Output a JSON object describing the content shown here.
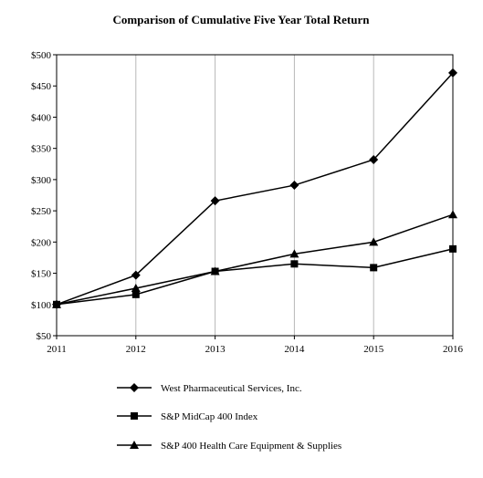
{
  "chart_data": {
    "type": "line",
    "title": "Comparison of Cumulative Five Year Total Return",
    "xlabel": "",
    "ylabel": "",
    "x": [
      "2011",
      "2012",
      "2013",
      "2014",
      "2015",
      "2016"
    ],
    "ylim": [
      50,
      500
    ],
    "y_ticks": [
      "$50",
      "$100",
      "$150",
      "$200",
      "$250",
      "$300",
      "$350",
      "$400",
      "$450",
      "$500"
    ],
    "grid": "vertical",
    "legend_position": "bottom",
    "series": [
      {
        "name": "West Pharmaceutical Services, Inc.",
        "marker": "diamond",
        "values": [
          100,
          147,
          266,
          291,
          332,
          471
        ]
      },
      {
        "name": "S&P MidCap 400 Index",
        "marker": "square",
        "values": [
          100,
          116,
          153,
          165,
          159,
          189
        ]
      },
      {
        "name": "S&P 400 Health Care Equipment & Supplies",
        "marker": "triangle",
        "values": [
          100,
          126,
          153,
          181,
          200,
          244
        ]
      }
    ],
    "line_color": "#000000"
  }
}
